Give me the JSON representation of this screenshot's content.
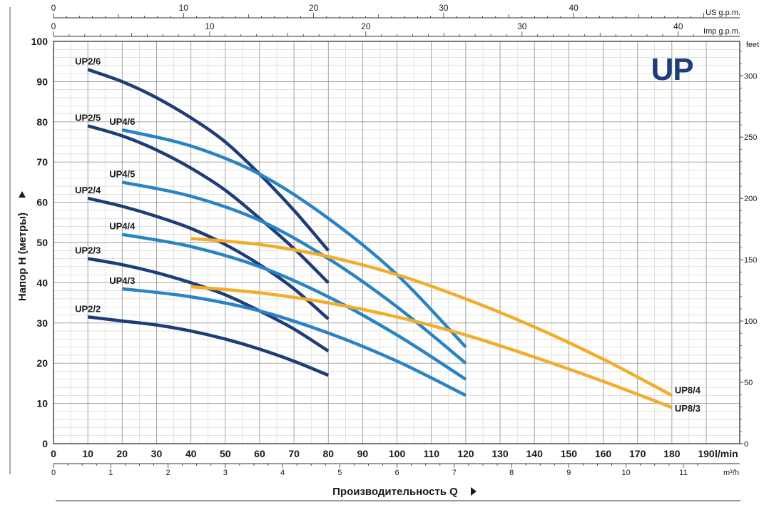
{
  "chart_data": {
    "type": "line",
    "title": "UP",
    "ylabel": "Напор H (метры)",
    "xlabel": "Производительность Q",
    "x_unit": "l/min",
    "ylim": [
      0,
      100
    ],
    "xlim": [
      0,
      190
    ],
    "y_ticks": [
      0,
      10,
      20,
      30,
      40,
      50,
      60,
      70,
      80,
      90,
      100
    ],
    "x_ticks": [
      0,
      10,
      20,
      30,
      40,
      50,
      60,
      70,
      80,
      90,
      100,
      110,
      120,
      130,
      140,
      150,
      160,
      170,
      180,
      190
    ],
    "axes": {
      "us_gpm": {
        "label": "US g.p.m.",
        "ticks": [
          0,
          10,
          20,
          30,
          40
        ]
      },
      "imp_gpm": {
        "label": "Imp g.p.m.",
        "ticks": [
          0,
          10,
          20,
          30,
          40
        ]
      },
      "feet": {
        "label": "feet",
        "ticks": [
          0,
          50,
          100,
          150,
          200,
          250,
          300
        ]
      },
      "m3h": {
        "label": "m³/h",
        "ticks": [
          0,
          1,
          2,
          3,
          4,
          5,
          6,
          7,
          8,
          9,
          10,
          11
        ]
      }
    },
    "colors": {
      "UP2": "#1e3d78",
      "UP4": "#2a84c4",
      "UP8": "#f2ad2e",
      "logo": "#1d3e7a"
    },
    "series": [
      {
        "name": "UP2/6",
        "group": "UP2",
        "x": [
          10,
          20,
          30,
          40,
          50,
          60,
          70,
          80
        ],
        "values": [
          93,
          90,
          86,
          81,
          75,
          67,
          58,
          48
        ]
      },
      {
        "name": "UP2/5",
        "group": "UP2",
        "x": [
          10,
          20,
          30,
          40,
          50,
          60,
          70,
          80
        ],
        "values": [
          79,
          76.5,
          73,
          68.5,
          63,
          56,
          48.5,
          40
        ]
      },
      {
        "name": "UP2/4",
        "group": "UP2",
        "x": [
          10,
          20,
          30,
          40,
          50,
          60,
          70,
          80
        ],
        "values": [
          61,
          59,
          56.5,
          53.5,
          49.5,
          44.5,
          38.5,
          31
        ]
      },
      {
        "name": "UP2/3",
        "group": "UP2",
        "x": [
          10,
          20,
          30,
          40,
          50,
          60,
          70,
          80
        ],
        "values": [
          46,
          44.5,
          42.5,
          40,
          37,
          33,
          28.5,
          23
        ]
      },
      {
        "name": "UP2/2",
        "group": "UP2",
        "x": [
          10,
          20,
          30,
          40,
          50,
          60,
          70,
          80
        ],
        "values": [
          31.5,
          30.5,
          29.5,
          28,
          26,
          23.5,
          20.5,
          17
        ]
      },
      {
        "name": "UP4/6",
        "group": "UP4",
        "x": [
          20,
          40,
          60,
          80,
          100,
          120
        ],
        "values": [
          78,
          74,
          67,
          56,
          42,
          24
        ]
      },
      {
        "name": "UP4/5",
        "group": "UP4",
        "x": [
          20,
          40,
          60,
          80,
          100,
          120
        ],
        "values": [
          65,
          61.5,
          55.5,
          46,
          34,
          20
        ]
      },
      {
        "name": "UP4/4",
        "group": "UP4",
        "x": [
          20,
          40,
          60,
          80,
          100,
          120
        ],
        "values": [
          52,
          49,
          44,
          36.5,
          27,
          16
        ]
      },
      {
        "name": "UP4/3",
        "group": "UP4",
        "x": [
          20,
          40,
          60,
          80,
          100,
          120
        ],
        "values": [
          38.5,
          36.5,
          33,
          27.5,
          20.5,
          12
        ]
      },
      {
        "name": "UP8/4",
        "group": "UP8",
        "x": [
          40,
          60,
          80,
          100,
          120,
          140,
          160,
          180
        ],
        "values": [
          51,
          49.5,
          46.5,
          42,
          36,
          29,
          21,
          12
        ]
      },
      {
        "name": "UP8/3",
        "group": "UP8",
        "x": [
          40,
          60,
          80,
          100,
          120,
          140,
          160,
          180
        ],
        "values": [
          39,
          37.5,
          35,
          31.5,
          27,
          21.5,
          15.5,
          9
        ]
      }
    ]
  }
}
